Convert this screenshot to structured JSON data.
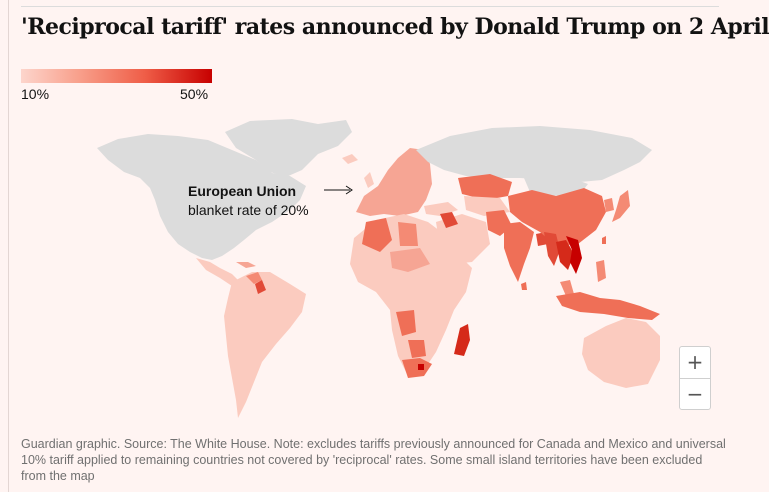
{
  "title": "'Reciprocal tariff' rates announced by Donald Trump on 2 April",
  "legend": {
    "min_label": "10%",
    "max_label": "50%",
    "min_color": "#fdd5cc",
    "max_color": "#c70000"
  },
  "annotation": {
    "title": "European Union",
    "subtitle": "blanket rate of 20%"
  },
  "zoom": {
    "in_label": "+",
    "out_label": "−"
  },
  "colors": {
    "no_data": "#dcdcdc",
    "background": "#fff4f2",
    "tier_10": "#fdd5cc",
    "tier_20": "#f6a594",
    "tier_30": "#ef6f57",
    "tier_40": "#e14a37",
    "tier_50": "#c70000"
  },
  "note": "Guardian graphic. Source: The White House. Note: excludes tariffs previously announced for Canada and Mexico and universal 10% tariff applied to remaining countries not covered by 'reciprocal' rates. Some small island territories have been excluded from the map"
}
